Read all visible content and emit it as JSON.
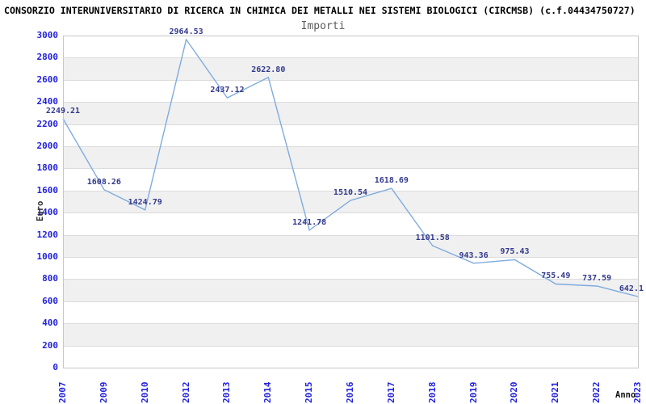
{
  "header": {
    "title": "CONSORZIO INTERUNIVERSITARIO DI RICERCA IN CHIMICA DEI METALLI NEI SISTEMI BIOLOGICI (CIRCMSB) (c.f.04434750727)",
    "subtitle": "Importi"
  },
  "chart_data": {
    "type": "line",
    "title": "Importi",
    "xlabel": "Anno",
    "ylabel": "Euro",
    "ylim": [
      0,
      3000
    ],
    "ytick_step": 200,
    "grid": "horizontal-bands-alternating",
    "legend": null,
    "categories": [
      "2007",
      "2009",
      "2010",
      "2012",
      "2013",
      "2014",
      "2015",
      "2016",
      "2017",
      "2018",
      "2019",
      "2020",
      "2021",
      "2022",
      "2023"
    ],
    "values": [
      2249.21,
      1608.26,
      1424.79,
      2964.53,
      2437.12,
      2622.8,
      1241.78,
      1510.54,
      1618.69,
      1101.58,
      943.36,
      975.43,
      755.49,
      737.59,
      642.1
    ],
    "value_labels": [
      "2249.21",
      "1608.26",
      "1424.79",
      "2964.53",
      "2437.12",
      "2622.80",
      "1241.78",
      "1510.54",
      "1618.69",
      "1101.58",
      "943.36",
      "975.43",
      "755.49",
      "737.59",
      "642.1"
    ],
    "colors": {
      "line": "#7fabdf",
      "tick_label": "#2222dd",
      "value_label": "#333a8c",
      "band": "#f0f0f0",
      "grid": "#dcdcdc",
      "plot_border": "#c8c8c8",
      "title": "#000000",
      "subtitle": "#5a5a5a",
      "axis_label": "#333333"
    }
  }
}
